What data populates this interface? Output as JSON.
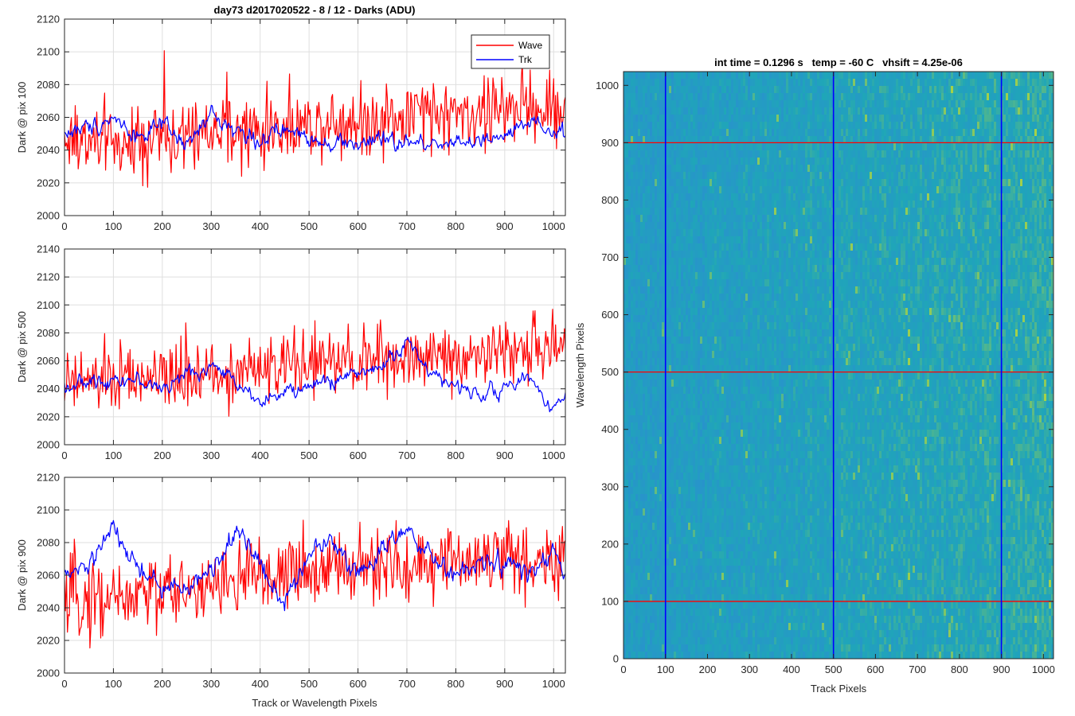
{
  "chart_data": [
    {
      "type": "line",
      "title": "day73 d2017020522 - 8 / 12 - Darks (ADU)",
      "xlabel": "",
      "ylabel": "Dark @ pix 100",
      "xlim": [
        0,
        1024
      ],
      "ylim": [
        2000,
        2120
      ],
      "xticks": [
        0,
        100,
        200,
        300,
        400,
        500,
        600,
        700,
        800,
        900,
        1000
      ],
      "yticks": [
        2000,
        2020,
        2040,
        2060,
        2080,
        2100,
        2120
      ],
      "grid": true,
      "legend": "top-right",
      "legend_entries": [
        "Wave",
        "Trk"
      ],
      "series": [
        {
          "name": "Wave",
          "color": "#ff0000",
          "x": [
            0,
            50,
            100,
            150,
            200,
            250,
            300,
            350,
            400,
            450,
            500,
            550,
            600,
            650,
            700,
            750,
            800,
            850,
            900,
            950,
            1000,
            1024
          ],
          "values": [
            2046,
            2044,
            2045,
            2048,
            2048,
            2047,
            2050,
            2050,
            2052,
            2054,
            2056,
            2058,
            2058,
            2060,
            2060,
            2062,
            2062,
            2064,
            2064,
            2066,
            2064,
            2064
          ],
          "spread": 11
        },
        {
          "name": "Trk",
          "color": "#0000ff",
          "x": [
            0,
            50,
            100,
            150,
            200,
            250,
            300,
            350,
            400,
            450,
            500,
            550,
            600,
            650,
            700,
            750,
            800,
            850,
            900,
            950,
            1000,
            1024
          ],
          "values": [
            2050,
            2054,
            2060,
            2048,
            2055,
            2042,
            2062,
            2052,
            2046,
            2052,
            2048,
            2045,
            2044,
            2046,
            2044,
            2044,
            2046,
            2044,
            2048,
            2056,
            2050,
            2050
          ],
          "spread": 5
        }
      ]
    },
    {
      "type": "line",
      "title": "",
      "xlabel": "",
      "ylabel": "Dark @ pix 500",
      "xlim": [
        0,
        1024
      ],
      "ylim": [
        2000,
        2140
      ],
      "xticks": [
        0,
        100,
        200,
        300,
        400,
        500,
        600,
        700,
        800,
        900,
        1000
      ],
      "yticks": [
        2000,
        2020,
        2040,
        2060,
        2080,
        2100,
        2120,
        2140
      ],
      "grid": true,
      "series": [
        {
          "name": "Wave",
          "color": "#ff0000",
          "x": [
            0,
            50,
            100,
            150,
            200,
            250,
            300,
            350,
            400,
            450,
            500,
            550,
            600,
            650,
            700,
            750,
            800,
            850,
            900,
            950,
            1000,
            1024
          ],
          "values": [
            2044,
            2044,
            2046,
            2046,
            2046,
            2048,
            2050,
            2052,
            2054,
            2056,
            2058,
            2058,
            2060,
            2062,
            2062,
            2062,
            2064,
            2066,
            2066,
            2068,
            2070,
            2070
          ],
          "spread": 11
        },
        {
          "name": "Trk",
          "color": "#0000ff",
          "x": [
            0,
            50,
            100,
            150,
            200,
            250,
            300,
            350,
            400,
            450,
            500,
            550,
            600,
            650,
            700,
            750,
            800,
            850,
            900,
            950,
            1000,
            1024
          ],
          "values": [
            2042,
            2044,
            2048,
            2046,
            2040,
            2050,
            2056,
            2046,
            2032,
            2036,
            2042,
            2046,
            2052,
            2056,
            2074,
            2052,
            2040,
            2038,
            2040,
            2048,
            2026,
            2036
          ],
          "spread": 5
        }
      ]
    },
    {
      "type": "line",
      "title": "",
      "xlabel": "Track or Wavelength Pixels",
      "ylabel": "Dark @ pix 900",
      "xlim": [
        0,
        1024
      ],
      "ylim": [
        2000,
        2120
      ],
      "xticks": [
        0,
        100,
        200,
        300,
        400,
        500,
        600,
        700,
        800,
        900,
        1000
      ],
      "yticks": [
        2000,
        2020,
        2040,
        2060,
        2080,
        2100,
        2120
      ],
      "grid": true,
      "series": [
        {
          "name": "Wave",
          "color": "#ff0000",
          "x": [
            0,
            50,
            100,
            150,
            200,
            250,
            300,
            350,
            400,
            450,
            500,
            550,
            600,
            650,
            700,
            750,
            800,
            850,
            900,
            950,
            1000,
            1024
          ],
          "values": [
            2042,
            2046,
            2048,
            2048,
            2050,
            2052,
            2054,
            2056,
            2058,
            2060,
            2062,
            2064,
            2064,
            2066,
            2066,
            2068,
            2068,
            2070,
            2070,
            2070,
            2070,
            2070
          ],
          "spread": 11
        },
        {
          "name": "Trk",
          "color": "#0000ff",
          "x": [
            0,
            50,
            100,
            150,
            200,
            250,
            300,
            350,
            400,
            450,
            500,
            550,
            600,
            650,
            700,
            750,
            800,
            850,
            900,
            950,
            1000,
            1024
          ],
          "values": [
            2058,
            2066,
            2088,
            2064,
            2052,
            2052,
            2062,
            2088,
            2068,
            2042,
            2074,
            2082,
            2060,
            2078,
            2086,
            2070,
            2060,
            2066,
            2068,
            2060,
            2072,
            2062
          ],
          "spread": 6
        }
      ]
    },
    {
      "type": "heatmap",
      "title": "int time = 0.1296 s   temp = -60 C   vhsift = 4.25e-06",
      "xlabel": "Track Pixels",
      "ylabel": "Wavelength Pixels",
      "xlim": [
        0,
        1024
      ],
      "ylim": [
        0,
        1024
      ],
      "xticks": [
        0,
        100,
        200,
        300,
        400,
        500,
        600,
        700,
        800,
        900,
        1000
      ],
      "yticks": [
        0,
        100,
        200,
        300,
        400,
        500,
        600,
        700,
        800,
        900,
        1000
      ],
      "colormap": {
        "low": "#2a8fd0",
        "mid": "#1fa6b8",
        "high": "#a6d246"
      },
      "column_markers": {
        "values": [
          100,
          500,
          900
        ],
        "color": "#0000ff"
      },
      "row_markers": {
        "values": [
          100,
          500,
          900
        ],
        "color": "#ff0000"
      }
    }
  ]
}
